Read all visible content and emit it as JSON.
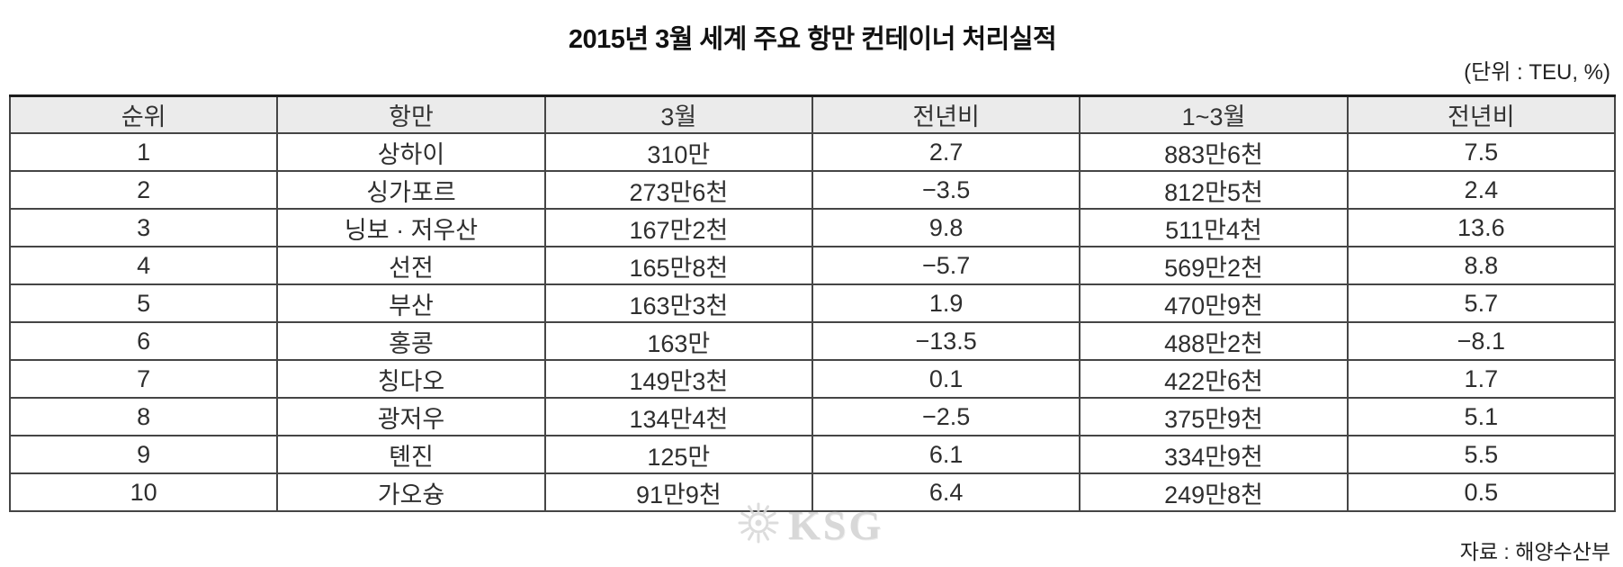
{
  "title": "2015년 3월 세계 주요 항만 컨테이너 처리실적",
  "unit_note": "(단위 : TEU, %)",
  "source_note": "자료 : 해양수산부",
  "watermark": {
    "icon": "ksg-sun-logo",
    "text": "KSG"
  },
  "chart_data": {
    "type": "table",
    "title": "2015년 3월 세계 주요 항만 컨테이너 처리실적",
    "unit": "TEU, %",
    "columns": [
      "순위",
      "항만",
      "3월",
      "전년비",
      "1~3월",
      "전년비"
    ],
    "rows": [
      [
        "1",
        "상하이",
        "310만",
        "2.7",
        "883만6천",
        "7.5"
      ],
      [
        "2",
        "싱가포르",
        "273만6천",
        "−3.5",
        "812만5천",
        "2.4"
      ],
      [
        "3",
        "닝보 · 저우산",
        "167만2천",
        "9.8",
        "511만4천",
        "13.6"
      ],
      [
        "4",
        "선전",
        "165만8천",
        "−5.7",
        "569만2천",
        "8.8"
      ],
      [
        "5",
        "부산",
        "163만3천",
        "1.9",
        "470만9천",
        "5.7"
      ],
      [
        "6",
        "홍콩",
        "163만",
        "−13.5",
        "488만2천",
        "−8.1"
      ],
      [
        "7",
        "칭다오",
        "149만3천",
        "0.1",
        "422만6천",
        "1.7"
      ],
      [
        "8",
        "광저우",
        "134만4천",
        "−2.5",
        "375만9천",
        "5.1"
      ],
      [
        "9",
        "톈진",
        "125만",
        "6.1",
        "334만9천",
        "5.5"
      ],
      [
        "10",
        "가오슝",
        "91만9천",
        "6.4",
        "249만8천",
        "0.5"
      ]
    ],
    "source": "해양수산부"
  },
  "colors": {
    "header_background": "#ebebeb",
    "border": "#454545",
    "top_border": "#1c1c1c",
    "text": "#2e2e2e",
    "watermark": "#d2d2d2"
  }
}
